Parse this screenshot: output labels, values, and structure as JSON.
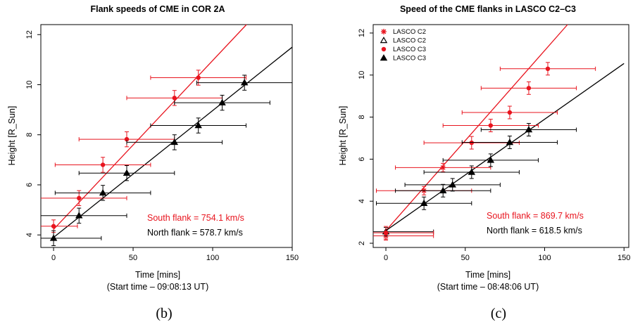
{
  "chart_data": [
    {
      "type": "scatter",
      "panel_label": "(b)",
      "title": "Flank speeds of CME in COR 2A",
      "xlabel": "Time [mins]",
      "xlabel2": "(Start time – 09:08:13 UT)",
      "ylabel": "Height [R_Sun]",
      "xlim": [
        -8,
        150
      ],
      "ylim": [
        3.5,
        12.4
      ],
      "xticks": [
        0,
        50,
        100,
        150
      ],
      "yticks": [
        4,
        6,
        8,
        10,
        12
      ],
      "series": [
        {
          "name": "South flank",
          "color": "#e8141e",
          "marker": "circle",
          "x": [
            0,
            16,
            31,
            46,
            76,
            91
          ],
          "y": [
            4.35,
            5.47,
            6.8,
            7.82,
            9.47,
            10.28
          ],
          "yerr": [
            0.25,
            0.3,
            0.3,
            0.3,
            0.3,
            0.3
          ],
          "xerr": [
            15,
            30,
            30,
            30,
            30,
            30
          ],
          "fit": {
            "x": [
              0,
              122
            ],
            "y": [
              4.22,
              12.45
            ]
          }
        },
        {
          "name": "North flank",
          "color": "#000000",
          "marker": "triangle",
          "x": [
            0,
            16,
            31,
            46,
            76,
            91,
            106,
            120
          ],
          "y": [
            3.87,
            4.77,
            5.68,
            6.47,
            7.7,
            8.37,
            9.28,
            10.08
          ],
          "yerr": [
            0.3,
            0.3,
            0.3,
            0.3,
            0.3,
            0.3,
            0.3,
            0.3
          ],
          "xerr": [
            30,
            30,
            30,
            30,
            30,
            30,
            30,
            30
          ],
          "fit": {
            "x": [
              0,
              150
            ],
            "y": [
              3.9,
              11.5
            ]
          }
        }
      ],
      "annotations": [
        {
          "text": "South flank = 754.1 km/s",
          "color": "#e8141e"
        },
        {
          "text": "North flank = 578.7 km/s",
          "color": "#000000"
        }
      ]
    },
    {
      "type": "scatter",
      "panel_label": "(c)",
      "title": "Speed of the CME flanks in LASCO C2–C3",
      "xlabel": "Time [mins]",
      "xlabel2": "(Start time – 08:48:06 UT)",
      "ylabel": "Height [R_Sun]",
      "xlim": [
        -8,
        153
      ],
      "ylim": [
        1.8,
        12.4
      ],
      "xticks": [
        0,
        50,
        100,
        150
      ],
      "yticks": [
        2,
        4,
        6,
        8,
        10,
        12
      ],
      "legend": [
        {
          "label": "LASCO C2",
          "color": "#e8141e",
          "marker": "asterisk"
        },
        {
          "label": "LASCO C2",
          "color": "#000000",
          "marker": "open-triangle"
        },
        {
          "label": "LASCO C3",
          "color": "#e8141e",
          "marker": "circle"
        },
        {
          "label": "LASCO C3",
          "color": "#000000",
          "marker": "triangle"
        }
      ],
      "series": [
        {
          "name": "LASCO C2",
          "color": "#e8141e",
          "marker": "asterisk",
          "x": [
            0,
            24,
            36
          ],
          "y": [
            2.35,
            4.5,
            5.6
          ],
          "yerr": [
            0.2,
            0.2,
            0.2
          ],
          "xerr": [
            30,
            30,
            30
          ]
        },
        {
          "name": "LASCO C2",
          "color": "#000000",
          "marker": "open-triangle",
          "x": [
            0
          ],
          "y": [
            2.55
          ],
          "yerr": [
            0.2
          ],
          "xerr": [
            30
          ]
        },
        {
          "name": "LASCO C3",
          "color": "#e8141e",
          "marker": "circle",
          "x": [
            0,
            54,
            66,
            78,
            90,
            102
          ],
          "y": [
            2.5,
            6.78,
            7.6,
            8.22,
            9.38,
            10.3
          ],
          "yerr": [
            0.3,
            0.3,
            0.3,
            0.3,
            0.3,
            0.3
          ],
          "xerr": [
            30,
            30,
            30,
            30,
            30,
            30
          ],
          "fit": {
            "x": [
              0,
              115
            ],
            "y": [
              2.6,
              12.45
            ]
          }
        },
        {
          "name": "LASCO C3",
          "color": "#000000",
          "marker": "triangle",
          "x": [
            24,
            36,
            42,
            54,
            66,
            78,
            90
          ],
          "y": [
            3.9,
            4.5,
            4.78,
            5.38,
            5.95,
            6.8,
            7.4
          ],
          "yerr": [
            0.3,
            0.3,
            0.3,
            0.3,
            0.3,
            0.3,
            0.3
          ],
          "xerr": [
            30,
            30,
            30,
            30,
            30,
            30,
            30
          ],
          "fit": {
            "x": [
              0,
              150
            ],
            "y": [
              2.6,
              10.55
            ]
          }
        }
      ],
      "annotations": [
        {
          "text": "South flank = 869.7 km/s",
          "color": "#e8141e"
        },
        {
          "text": "North flank = 618.5 km/s",
          "color": "#000000"
        }
      ]
    }
  ]
}
